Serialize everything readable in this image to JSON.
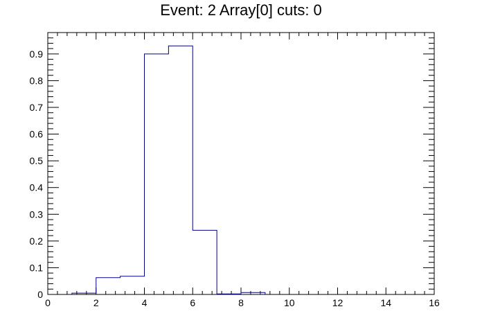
{
  "chart_data": {
    "type": "bar",
    "title": "Event: 2 Array[0] cuts: 0",
    "xlabel": "",
    "ylabel": "",
    "xlim": [
      0,
      16
    ],
    "ylim": [
      0,
      0.98
    ],
    "x_ticks": [
      0,
      2,
      4,
      6,
      8,
      10,
      12,
      14,
      16
    ],
    "y_ticks": [
      0,
      0.1,
      0.2,
      0.3,
      0.4,
      0.5,
      0.6,
      0.7,
      0.8,
      0.9
    ],
    "x_tick_labels": [
      "0",
      "2",
      "4",
      "6",
      "8",
      "10",
      "12",
      "14",
      "16"
    ],
    "y_tick_labels": [
      "0",
      "0.1",
      "0.2",
      "0.3",
      "0.4",
      "0.5",
      "0.6",
      "0.7",
      "0.8",
      "0.9"
    ],
    "bin_edges": [
      1,
      2,
      3,
      4,
      5,
      6,
      7,
      8,
      9
    ],
    "values": [
      0.005,
      0.063,
      0.068,
      0.9,
      0.93,
      0.24,
      0.002,
      0.007
    ],
    "grid": false,
    "legend": "none",
    "line_color": "#000080",
    "axis_color": "#000000"
  }
}
